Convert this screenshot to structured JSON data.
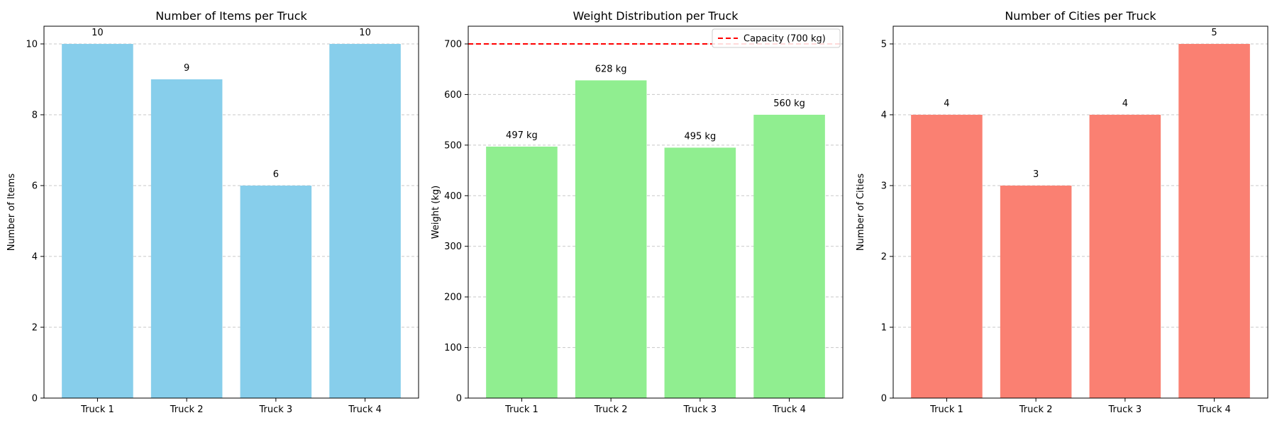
{
  "chart_data": [
    {
      "type": "bar",
      "title": "Number of Items per Truck",
      "xlabel": "",
      "ylabel": "Number of Items",
      "categories": [
        "Truck 1",
        "Truck 2",
        "Truck 3",
        "Truck 4"
      ],
      "values": [
        10,
        9,
        6,
        10
      ],
      "value_labels": [
        "10",
        "9",
        "6",
        "10"
      ],
      "ylim": [
        0,
        10.5
      ],
      "yticks": [
        0,
        2,
        4,
        6,
        8,
        10
      ],
      "ytick_labels": [
        "0",
        "2",
        "4",
        "6",
        "8",
        "10"
      ],
      "bar_color": "#87ceeb",
      "grid": "y-dashed"
    },
    {
      "type": "bar",
      "title": "Weight Distribution per Truck",
      "xlabel": "",
      "ylabel": "Weight (kg)",
      "categories": [
        "Truck 1",
        "Truck 2",
        "Truck 3",
        "Truck 4"
      ],
      "values": [
        497,
        628,
        495,
        560
      ],
      "value_labels": [
        "497 kg",
        "628 kg",
        "495 kg",
        "560 kg"
      ],
      "ylim": [
        0,
        735
      ],
      "yticks": [
        0,
        100,
        200,
        300,
        400,
        500,
        600,
        700
      ],
      "ytick_labels": [
        "0",
        "100",
        "200",
        "300",
        "400",
        "500",
        "600",
        "700"
      ],
      "bar_color": "#90ee90",
      "grid": "y-dashed",
      "reference_line": {
        "y": 700,
        "label": "Capacity (700 kg)",
        "color": "#ff0000",
        "style": "dashed"
      },
      "legend": {
        "placement": "upper-right",
        "entries": [
          "Capacity (700 kg)"
        ]
      }
    },
    {
      "type": "bar",
      "title": "Number of Cities per Truck",
      "xlabel": "",
      "ylabel": "Number of Cities",
      "categories": [
        "Truck 1",
        "Truck 2",
        "Truck 3",
        "Truck 4"
      ],
      "values": [
        4,
        3,
        4,
        5
      ],
      "value_labels": [
        "4",
        "3",
        "4",
        "5"
      ],
      "ylim": [
        0,
        5.25
      ],
      "yticks": [
        0,
        1,
        2,
        3,
        4,
        5
      ],
      "ytick_labels": [
        "0",
        "1",
        "2",
        "3",
        "4",
        "5"
      ],
      "bar_color": "#fa8072",
      "grid": "y-dashed"
    }
  ]
}
